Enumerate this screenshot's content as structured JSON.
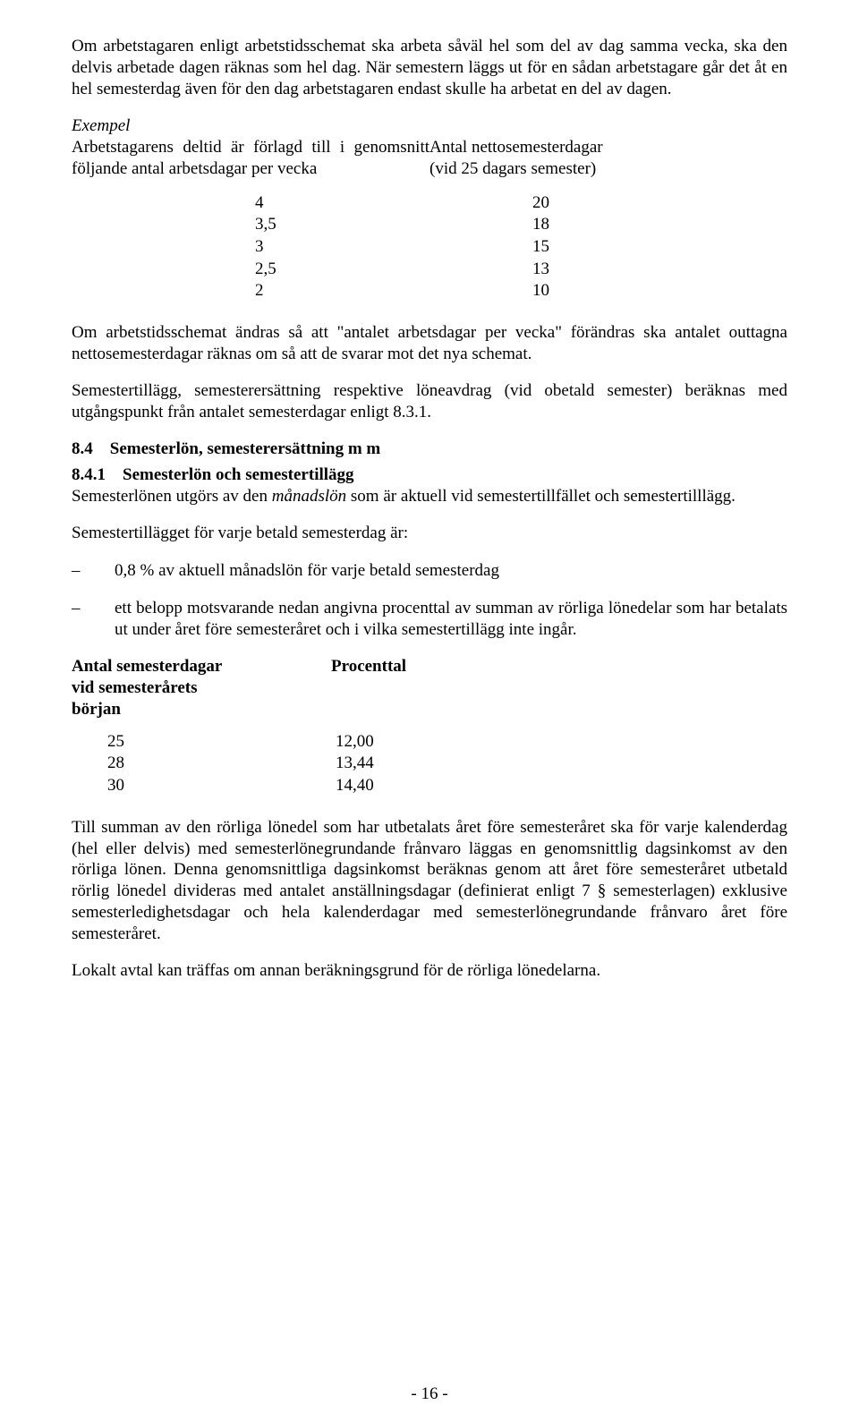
{
  "para1": "Om arbetstagaren enligt arbetstidsschemat ska arbeta såväl hel som del av dag samma vecka, ska den delvis arbetade dagen räknas som hel dag. När semestern läggs ut för en sådan arbetstagare går det åt en hel semesterdag även för den dag arbetstagaren endast skulle ha arbetat en del av dagen.",
  "example": {
    "label": "Exempel",
    "left": "Arbetstagarens deltid är förlagd till i genomsnitt följande antal arbetsdagar per vecka",
    "right_line1": "Antal nettosemesterdagar",
    "right_line2": "(vid 25 dagars semester)",
    "rows": [
      {
        "days": "4",
        "netto": "20"
      },
      {
        "days": "3,5",
        "netto": "18"
      },
      {
        "days": "3",
        "netto": "15"
      },
      {
        "days": "2,5",
        "netto": "13"
      },
      {
        "days": "2",
        "netto": "10"
      }
    ]
  },
  "para2": "Om arbetstidsschemat ändras så att \"antalet arbetsdagar per vecka\" förändras ska antalet outtagna nettosemesterdagar räknas om så att de svarar mot det nya schemat.",
  "para3": "Semestertillägg, semesterersättning respektive löneavdrag (vid obetald semester) beräknas med utgångspunkt från antalet semesterdagar enligt 8.3.1.",
  "section84": {
    "heading": "8.4 Semesterlön, semesterersättning m m",
    "sub": {
      "heading": "8.4.1 Semesterlön och semestertillägg",
      "para1_before": "Semesterlönen utgörs av den ",
      "para1_italic": "månadslön",
      "para1_after": " som är aktuell vid semestertillfället och semestertilllägg.",
      "para2": "Semestertillägget för varje betald semesterdag är:",
      "bullets": [
        "0,8 % av aktuell månadslön för varje betald semesterdag",
        "ett belopp motsvarande nedan angivna procenttal av summan av rörliga lönedelar som har betalats ut under året före semesteråret och i vilka semestertillägg inte ingår."
      ]
    }
  },
  "percent": {
    "header_left_l1": "Antal semesterdagar",
    "header_left_l2": "vid semesterårets",
    "header_left_l3": "början",
    "header_right": "Procenttal",
    "rows": [
      {
        "days": "25",
        "pct": "12,00"
      },
      {
        "days": "28",
        "pct": "13,44"
      },
      {
        "days": "30",
        "pct": "14,40"
      }
    ]
  },
  "para4": "Till summan av den rörliga lönedel som har utbetalats året före semesteråret ska för varje kalenderdag (hel eller delvis) med semesterlönegrundande frånvaro läggas en genomsnittlig dagsinkomst av den rörliga lönen. Denna genomsnittliga dagsinkomst beräknas genom att året före semesteråret utbetald rörlig lönedel divideras med antalet anställningsdagar (definierat enligt 7 § semesterlagen) exklusive semesterledighetsdagar och hela kalenderdagar med semesterlönegrundande frånvaro året före semesteråret.",
  "para5": "Lokalt avtal kan träffas om annan beräkningsgrund för de rörliga lönedelarna.",
  "page_number": "- 16 -"
}
